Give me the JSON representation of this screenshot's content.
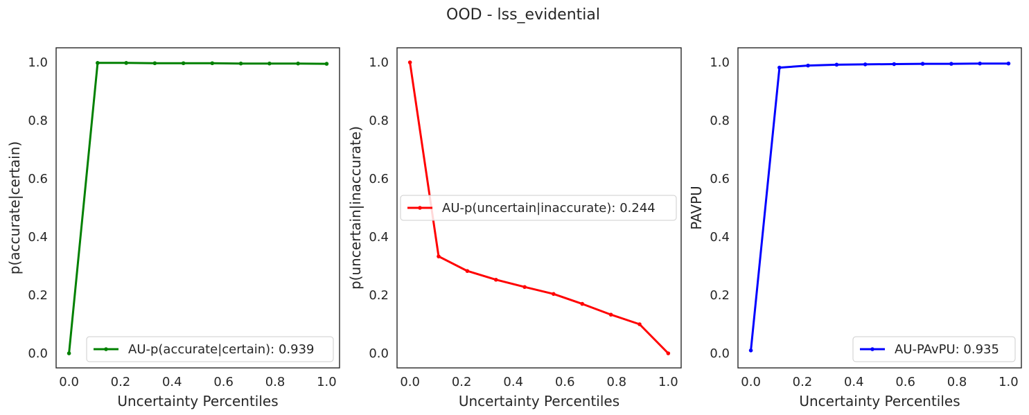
{
  "title": "OOD - lss_evidential",
  "chart_data": [
    {
      "type": "line",
      "xlabel": "Uncertainty Percentiles",
      "ylabel": "p(accurate|certain)",
      "xlim": [
        -0.05,
        1.05
      ],
      "ylim": [
        -0.05,
        1.05
      ],
      "xticks": [
        "0.0",
        "0.2",
        "0.4",
        "0.6",
        "0.8",
        "1.0"
      ],
      "yticks": [
        "0.0",
        "0.2",
        "0.4",
        "0.6",
        "0.8",
        "1.0"
      ],
      "legend_position": "lower right",
      "grid": false,
      "series": [
        {
          "name": "AU-p(accurate|certain): 0.939",
          "color": "#008000",
          "x": [
            0.0,
            0.111,
            0.222,
            0.333,
            0.444,
            0.556,
            0.667,
            0.778,
            0.889,
            1.0
          ],
          "y": [
            0.0,
            0.998,
            0.998,
            0.997,
            0.997,
            0.997,
            0.996,
            0.996,
            0.996,
            0.995
          ]
        }
      ]
    },
    {
      "type": "line",
      "xlabel": "Uncertainty Percentiles",
      "ylabel": "p(uncertain|inaccurate)",
      "xlim": [
        -0.05,
        1.05
      ],
      "ylim": [
        -0.05,
        1.05
      ],
      "xticks": [
        "0.0",
        "0.2",
        "0.4",
        "0.6",
        "0.8",
        "1.0"
      ],
      "yticks": [
        "0.0",
        "0.2",
        "0.4",
        "0.6",
        "0.8",
        "1.0"
      ],
      "legend_position": "center left",
      "grid": false,
      "series": [
        {
          "name": "AU-p(uncertain|inaccurate): 0.244",
          "color": "#ff0000",
          "x": [
            0.0,
            0.111,
            0.222,
            0.333,
            0.444,
            0.556,
            0.667,
            0.778,
            0.889,
            1.0
          ],
          "y": [
            1.0,
            0.333,
            0.283,
            0.253,
            0.228,
            0.204,
            0.17,
            0.133,
            0.1,
            0.0
          ]
        }
      ]
    },
    {
      "type": "line",
      "xlabel": "Uncertainty Percentiles",
      "ylabel": "PAVPU",
      "xlim": [
        -0.05,
        1.05
      ],
      "ylim": [
        -0.05,
        1.05
      ],
      "xticks": [
        "0.0",
        "0.2",
        "0.4",
        "0.6",
        "0.8",
        "1.0"
      ],
      "yticks": [
        "0.0",
        "0.2",
        "0.4",
        "0.6",
        "0.8",
        "1.0"
      ],
      "legend_position": "lower right",
      "grid": false,
      "series": [
        {
          "name": "AU-PAvPU: 0.935",
          "color": "#0000ff",
          "x": [
            0.0,
            0.111,
            0.222,
            0.333,
            0.444,
            0.556,
            0.667,
            0.778,
            0.889,
            1.0
          ],
          "y": [
            0.01,
            0.982,
            0.989,
            0.992,
            0.993,
            0.994,
            0.995,
            0.995,
            0.996,
            0.996
          ]
        }
      ]
    }
  ]
}
